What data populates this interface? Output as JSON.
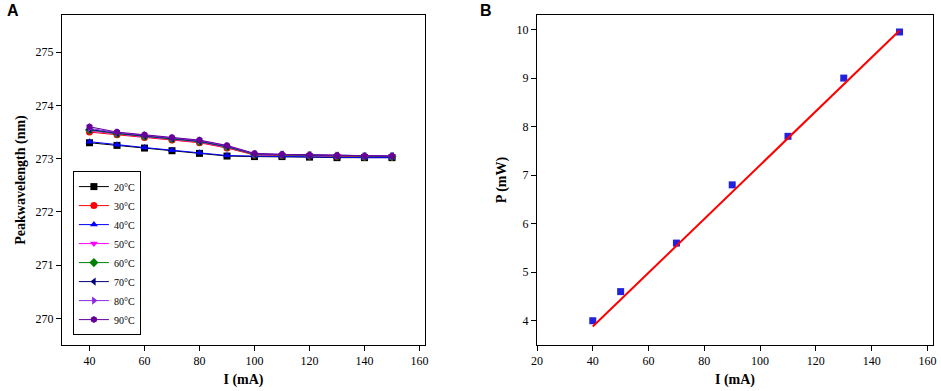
{
  "chart_data": [
    {
      "type": "line",
      "title": "A",
      "x_label": "I (mA)",
      "y_label": "Peakwavelength (nm)",
      "x": [
        40,
        50,
        60,
        70,
        80,
        90,
        100,
        110,
        120,
        130,
        140,
        150
      ],
      "xlim": [
        30,
        162
      ],
      "xticks": [
        40,
        60,
        80,
        100,
        120,
        140,
        160
      ],
      "ylim": [
        269.5,
        275.7
      ],
      "yticks": [
        270,
        271,
        272,
        273,
        274,
        275
      ],
      "grid": false,
      "legend": "lower left",
      "series": [
        {
          "name": "20°C",
          "color": "#000000",
          "marker": "square",
          "values": [
            273.3,
            273.25,
            273.2,
            273.15,
            273.1,
            273.05,
            273.04,
            273.04,
            273.03,
            273.02,
            273.02,
            273.02
          ]
        },
        {
          "name": "30°C",
          "color": "#ff0000",
          "marker": "circle",
          "values": [
            273.5,
            273.45,
            273.4,
            273.35,
            273.3,
            273.2,
            273.07,
            273.06,
            273.05,
            273.04,
            273.03,
            273.03
          ]
        },
        {
          "name": "40°C",
          "color": "#0000ff",
          "marker": "triangle-up",
          "values": [
            273.32,
            273.26,
            273.21,
            273.16,
            273.11,
            273.06,
            273.05,
            273.04,
            273.03,
            273.03,
            273.02,
            273.02
          ]
        },
        {
          "name": "50°C",
          "color": "#ff00ff",
          "marker": "triangle-down",
          "values": [
            273.52,
            273.46,
            273.41,
            273.36,
            273.31,
            273.21,
            273.08,
            273.07,
            273.06,
            273.05,
            273.04,
            273.04
          ]
        },
        {
          "name": "60°C",
          "color": "#008000",
          "marker": "diamond",
          "values": [
            273.54,
            273.47,
            273.42,
            273.37,
            273.32,
            273.22,
            273.08,
            273.07,
            273.06,
            273.05,
            273.04,
            273.04
          ]
        },
        {
          "name": "70°C",
          "color": "#000080",
          "marker": "triangle-left",
          "values": [
            273.55,
            273.48,
            273.43,
            273.38,
            273.33,
            273.23,
            273.09,
            273.08,
            273.07,
            273.06,
            273.05,
            273.05
          ]
        },
        {
          "name": "80°C",
          "color": "#8a2be2",
          "marker": "triangle-right",
          "values": [
            273.57,
            273.49,
            273.44,
            273.39,
            273.34,
            273.24,
            273.09,
            273.08,
            273.07,
            273.06,
            273.05,
            273.05
          ]
        },
        {
          "name": "90°C",
          "color": "#660099",
          "marker": "hexagon",
          "values": [
            273.6,
            273.5,
            273.45,
            273.4,
            273.35,
            273.25,
            273.1,
            273.08,
            273.07,
            273.06,
            273.05,
            273.05
          ]
        }
      ]
    },
    {
      "type": "scatter",
      "title": "B",
      "x_label": "I (mA)",
      "y_label": "P (mW)",
      "xlim": [
        20,
        162
      ],
      "xticks": [
        20,
        40,
        60,
        80,
        100,
        120,
        140,
        160
      ],
      "ylim": [
        3.5,
        10.3
      ],
      "yticks": [
        4,
        5,
        6,
        7,
        8,
        9,
        10
      ],
      "grid": false,
      "series": [
        {
          "type": "scatter",
          "color": "#2222dd",
          "marker": "square",
          "x": [
            40,
            50,
            70,
            90,
            110,
            130,
            150
          ],
          "values": [
            4.0,
            4.6,
            5.6,
            6.8,
            7.8,
            9.0,
            9.95
          ]
        },
        {
          "type": "line",
          "color": "#ff0000",
          "line_style": "solid",
          "x": [
            40,
            150
          ],
          "values": [
            3.88,
            9.98
          ]
        }
      ]
    }
  ]
}
